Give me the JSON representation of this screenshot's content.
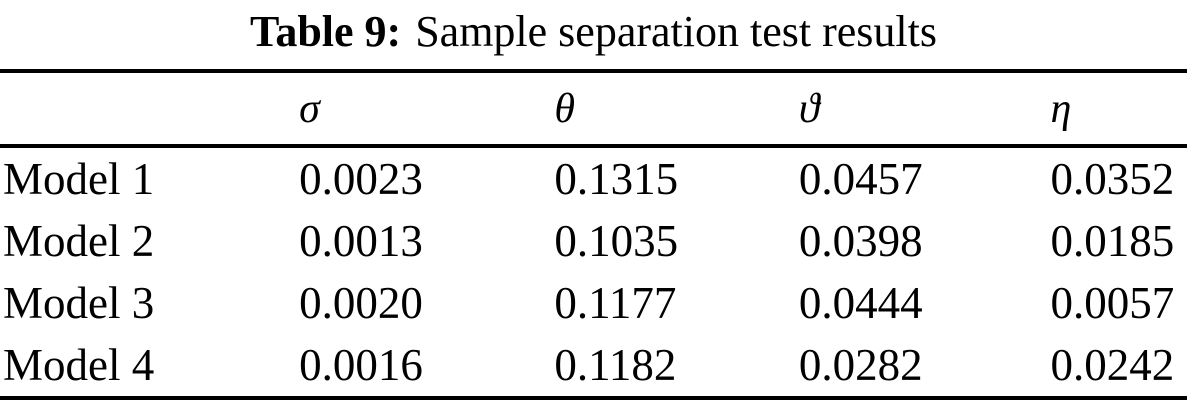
{
  "table": {
    "caption": {
      "label": "Table 9:",
      "text": "Sample separation test results"
    },
    "columns": [
      "",
      "σ",
      "θ",
      "ϑ",
      "η"
    ],
    "rows": [
      {
        "label": "Model 1",
        "values": [
          "0.0023",
          "0.1315",
          "0.0457",
          "0.0352"
        ]
      },
      {
        "label": "Model 2",
        "values": [
          "0.0013",
          "0.1035",
          "0.0398",
          "0.0185"
        ]
      },
      {
        "label": "Model 3",
        "values": [
          "0.0020",
          "0.1177",
          "0.0444",
          "0.0057"
        ]
      },
      {
        "label": "Model 4",
        "values": [
          "0.0016",
          "0.1182",
          "0.0282",
          "0.0242"
        ]
      }
    ]
  }
}
